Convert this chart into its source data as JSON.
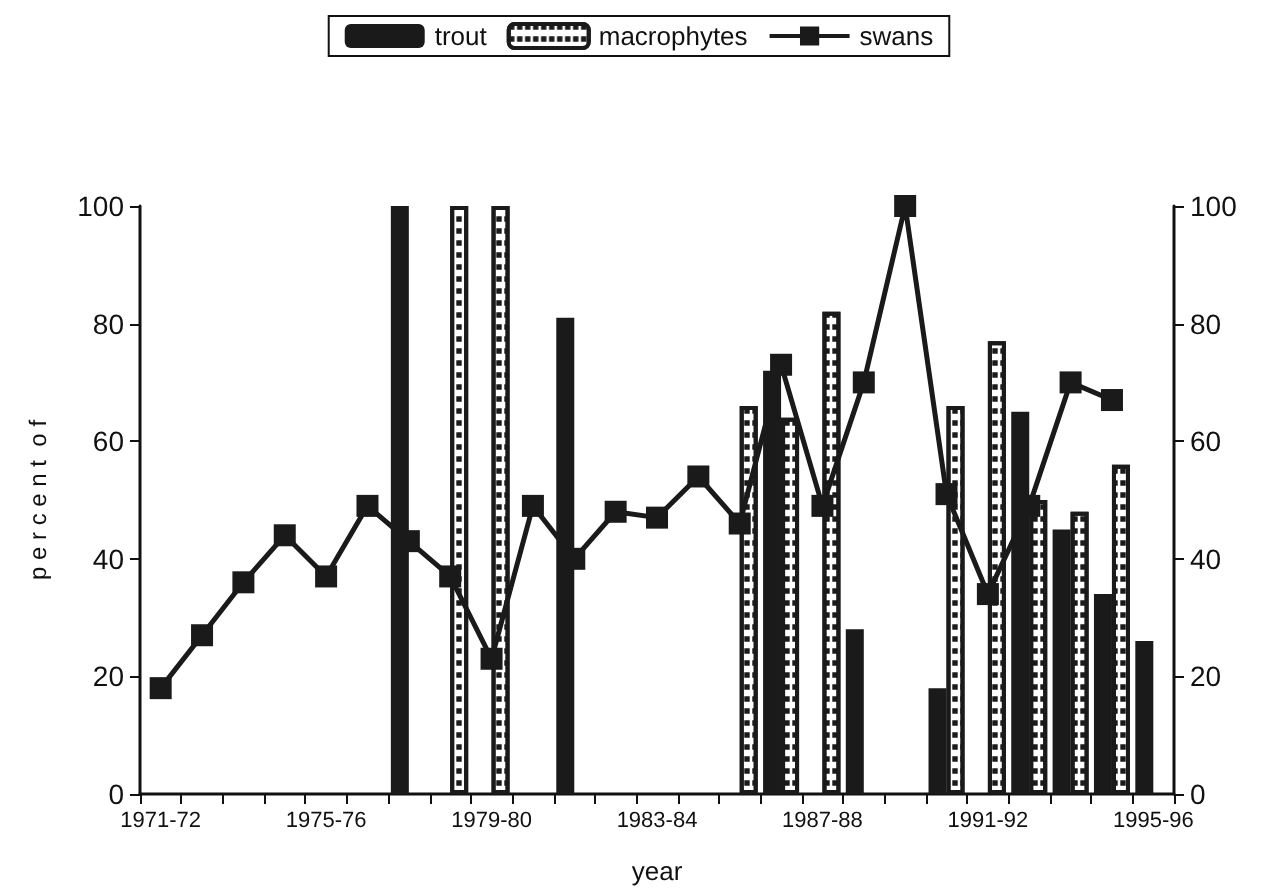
{
  "chart_data": {
    "type": "bar",
    "xlabel": "year",
    "ylabel": "p e r c e n t  o f",
    "categories": [
      "1971-72",
      null,
      null,
      null,
      "1975-76",
      null,
      null,
      null,
      "1979-80",
      null,
      null,
      null,
      "1983-84",
      null,
      null,
      null,
      "1987-88",
      null,
      null,
      null,
      "1991-92",
      null,
      null,
      null,
      "1995-96"
    ],
    "series": [
      {
        "name": "trout",
        "color": "#1a1a1a",
        "values": [
          null,
          null,
          null,
          null,
          null,
          null,
          100,
          null,
          null,
          null,
          81,
          null,
          null,
          null,
          null,
          72,
          null,
          28,
          null,
          18,
          null,
          65,
          45,
          34,
          26
        ]
      },
      {
        "name": "macrophytes",
        "color": "#ffffff",
        "values": [
          null,
          null,
          null,
          null,
          null,
          null,
          null,
          100,
          100,
          null,
          null,
          null,
          null,
          null,
          66,
          64,
          82,
          null,
          null,
          66,
          77,
          50,
          48,
          56,
          null
        ]
      },
      {
        "name": "swans",
        "type": "line",
        "color": "#1a1a1a",
        "marker": "square",
        "values": [
          18,
          27,
          36,
          44,
          37,
          49,
          43,
          37,
          23,
          49,
          40,
          48,
          47,
          54,
          46,
          73,
          49,
          70,
          100,
          51,
          34,
          49,
          70,
          67,
          null
        ]
      }
    ],
    "ylim": [
      0,
      100
    ],
    "yticks": [
      0,
      20,
      40,
      60,
      80,
      100
    ],
    "y2lim": [
      0,
      100
    ],
    "y2ticks": [
      0,
      20,
      40,
      60,
      80,
      100
    ],
    "grid": false,
    "legend": "top"
  }
}
